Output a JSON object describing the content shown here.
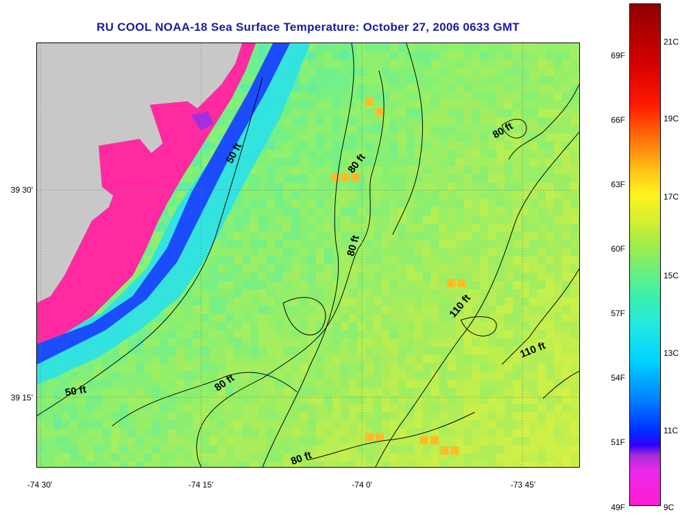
{
  "title": "RU COOL  NOAA-18  Sea Surface Temperature:  October 27, 2006 0633 GMT",
  "map": {
    "latitude_labels": [
      "39 30'",
      "39 15'"
    ],
    "longitude_labels": [
      "-74 30'",
      "-74 15'",
      "-74 0'",
      "-73 45'"
    ],
    "contour_labels": [
      "50 ft",
      "80 ft",
      "80 ft",
      "80 ft",
      "110 ft",
      "110 ft",
      "50 ft",
      "80 ft",
      "80 ft"
    ],
    "colors": {
      "land": "#c8c8c8",
      "grid": "#6f6f6f",
      "contour": "#000000"
    }
  },
  "colorbar": {
    "fahrenheit_labels": [
      "69F",
      "66F",
      "63F",
      "60F",
      "57F",
      "54F",
      "51F",
      "49F"
    ],
    "celsius_labels": [
      "21C",
      "19C",
      "17C",
      "15C",
      "13C",
      "11C",
      "9C"
    ]
  }
}
